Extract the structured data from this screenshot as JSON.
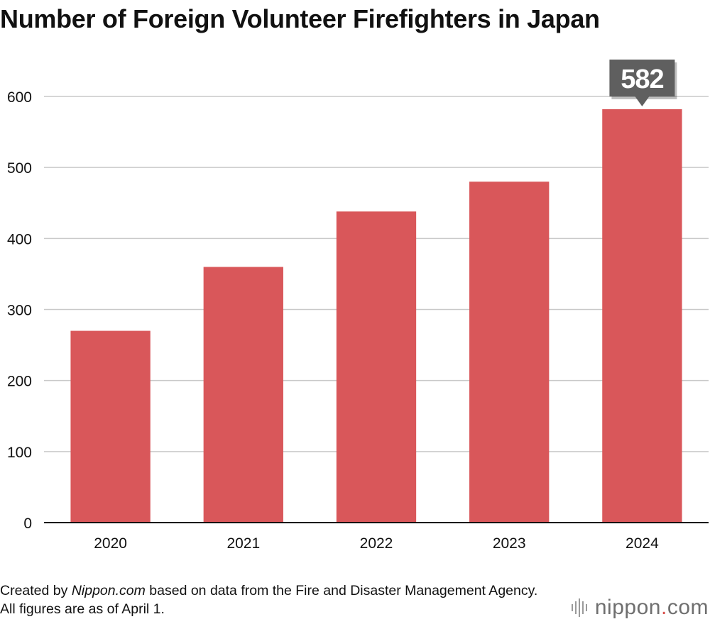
{
  "chart_data": {
    "type": "bar",
    "title": "Number of Foreign Volunteer Firefighters in Japan",
    "categories": [
      "2020",
      "2021",
      "2022",
      "2023",
      "2024"
    ],
    "values": [
      270,
      360,
      438,
      480,
      582
    ],
    "ylim": [
      0,
      600
    ],
    "yticks": [
      0,
      100,
      200,
      300,
      400,
      500,
      600
    ],
    "xlabel": "",
    "ylabel": "",
    "grid": true,
    "bar_color": "#d9575a",
    "callout": {
      "category": "2024",
      "label": "582",
      "color": "#5f5f5f"
    }
  },
  "footnote": {
    "prefix": "Created by ",
    "source_name": "Nippon.com",
    "suffix": " based on data from the Fire and Disaster Management Agency. All figures are as of April 1."
  },
  "logo": {
    "text": "nippon",
    "dot": ".",
    "tld": "com"
  }
}
